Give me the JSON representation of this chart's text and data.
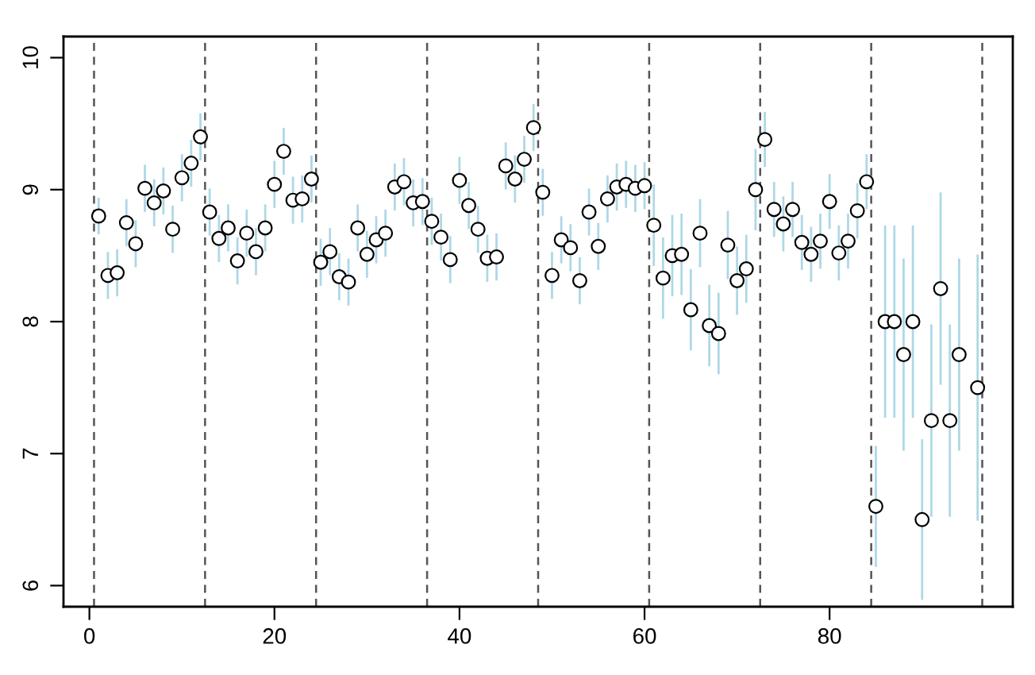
{
  "chart_data": {
    "type": "scatter",
    "marker": "circle",
    "grid": false,
    "legend": false,
    "x": [
      1,
      2,
      3,
      4,
      5,
      6,
      7,
      8,
      9,
      10,
      11,
      12,
      13,
      14,
      15,
      16,
      17,
      18,
      19,
      20,
      21,
      22,
      23,
      24,
      25,
      26,
      27,
      28,
      29,
      30,
      31,
      32,
      33,
      34,
      35,
      36,
      37,
      38,
      39,
      40,
      41,
      42,
      43,
      44,
      45,
      46,
      47,
      48,
      49,
      50,
      51,
      52,
      53,
      54,
      55,
      56,
      57,
      58,
      59,
      60,
      61,
      62,
      63,
      64,
      65,
      66,
      67,
      68,
      69,
      70,
      71,
      72,
      73,
      74,
      75,
      76,
      77,
      78,
      79,
      80,
      81,
      82,
      83,
      84,
      85,
      86,
      87,
      88,
      89,
      90,
      91,
      92,
      93,
      94,
      95,
      96
    ],
    "series": [
      {
        "color": "#000000",
        "values": [
          8.8,
          8.35,
          8.37,
          8.75,
          8.59,
          9.01,
          8.9,
          8.99,
          8.7,
          9.09,
          9.2,
          9.4,
          8.83,
          8.63,
          8.71,
          8.46,
          8.67,
          8.53,
          8.71,
          9.04,
          9.29,
          8.92,
          8.93,
          9.08,
          8.45,
          8.53,
          8.34,
          8.3,
          8.71,
          8.51,
          8.62,
          8.67,
          9.02,
          9.06,
          8.9,
          8.91,
          8.76,
          8.64,
          8.47,
          9.07,
          8.88,
          8.7,
          8.48,
          8.49,
          9.18,
          9.08,
          9.23,
          9.47,
          8.98,
          8.35,
          8.62,
          8.56,
          8.31,
          8.83,
          8.57,
          8.93,
          9.02,
          9.04,
          9.01,
          9.03,
          8.73,
          8.33,
          8.5,
          8.51,
          8.09,
          8.67,
          7.97,
          7.91,
          8.58,
          8.31,
          8.4,
          9.0,
          9.38,
          8.85,
          8.74,
          8.85,
          8.6,
          8.51,
          8.61,
          8.91,
          8.52,
          8.61,
          8.84,
          9.06,
          6.6,
          8.0,
          8.0,
          7.75,
          8.0,
          6.5,
          7.25,
          8.25,
          7.25,
          7.75,
          null,
          7.5
        ],
        "errors": [
          0.13,
          0.17,
          0.17,
          0.17,
          0.17,
          0.17,
          0.17,
          0.17,
          0.17,
          0.17,
          0.17,
          0.17,
          0.17,
          0.17,
          0.17,
          0.17,
          0.17,
          0.17,
          0.17,
          0.17,
          0.17,
          0.17,
          0.17,
          0.17,
          0.17,
          0.17,
          0.17,
          0.17,
          0.17,
          0.17,
          0.17,
          0.17,
          0.17,
          0.17,
          0.17,
          0.17,
          0.17,
          0.17,
          0.17,
          0.17,
          0.17,
          0.17,
          0.17,
          0.17,
          0.17,
          0.17,
          0.17,
          0.17,
          0.17,
          0.17,
          0.17,
          0.17,
          0.17,
          0.17,
          0.17,
          0.17,
          0.17,
          0.17,
          0.17,
          0.17,
          0.3,
          0.3,
          0.3,
          0.3,
          0.3,
          0.25,
          0.3,
          0.3,
          0.25,
          0.25,
          0.25,
          0.3,
          0.2,
          0.2,
          0.2,
          0.2,
          0.2,
          0.2,
          0.2,
          0.2,
          0.2,
          0.2,
          0.2,
          0.2,
          0.45,
          0.72,
          0.72,
          0.72,
          0.72,
          0.6,
          0.72,
          0.72,
          0.72,
          0.72,
          null,
          1.0
        ]
      }
    ],
    "xlim": [
      -2.8,
      99.8
    ],
    "ylim": [
      5.84,
      10.16
    ],
    "xticks": [
      0,
      20,
      40,
      60,
      80
    ],
    "yticks": [
      6,
      7,
      8,
      9,
      10
    ],
    "ref_lines": [
      {
        "axis": "x",
        "value": 0.5,
        "color": "#555555",
        "line_style": "dashed"
      },
      {
        "axis": "x",
        "value": 12.5,
        "color": "#555555",
        "line_style": "dashed"
      },
      {
        "axis": "x",
        "value": 24.5,
        "color": "#555555",
        "line_style": "dashed"
      },
      {
        "axis": "x",
        "value": 36.5,
        "color": "#555555",
        "line_style": "dashed"
      },
      {
        "axis": "x",
        "value": 48.5,
        "color": "#555555",
        "line_style": "dashed"
      },
      {
        "axis": "x",
        "value": 60.5,
        "color": "#555555",
        "line_style": "dashed"
      },
      {
        "axis": "x",
        "value": 72.5,
        "color": "#555555",
        "line_style": "dashed"
      },
      {
        "axis": "x",
        "value": 84.5,
        "color": "#555555",
        "line_style": "dashed"
      },
      {
        "axis": "x",
        "value": 96.5,
        "color": "#555555",
        "line_style": "dashed"
      }
    ]
  }
}
